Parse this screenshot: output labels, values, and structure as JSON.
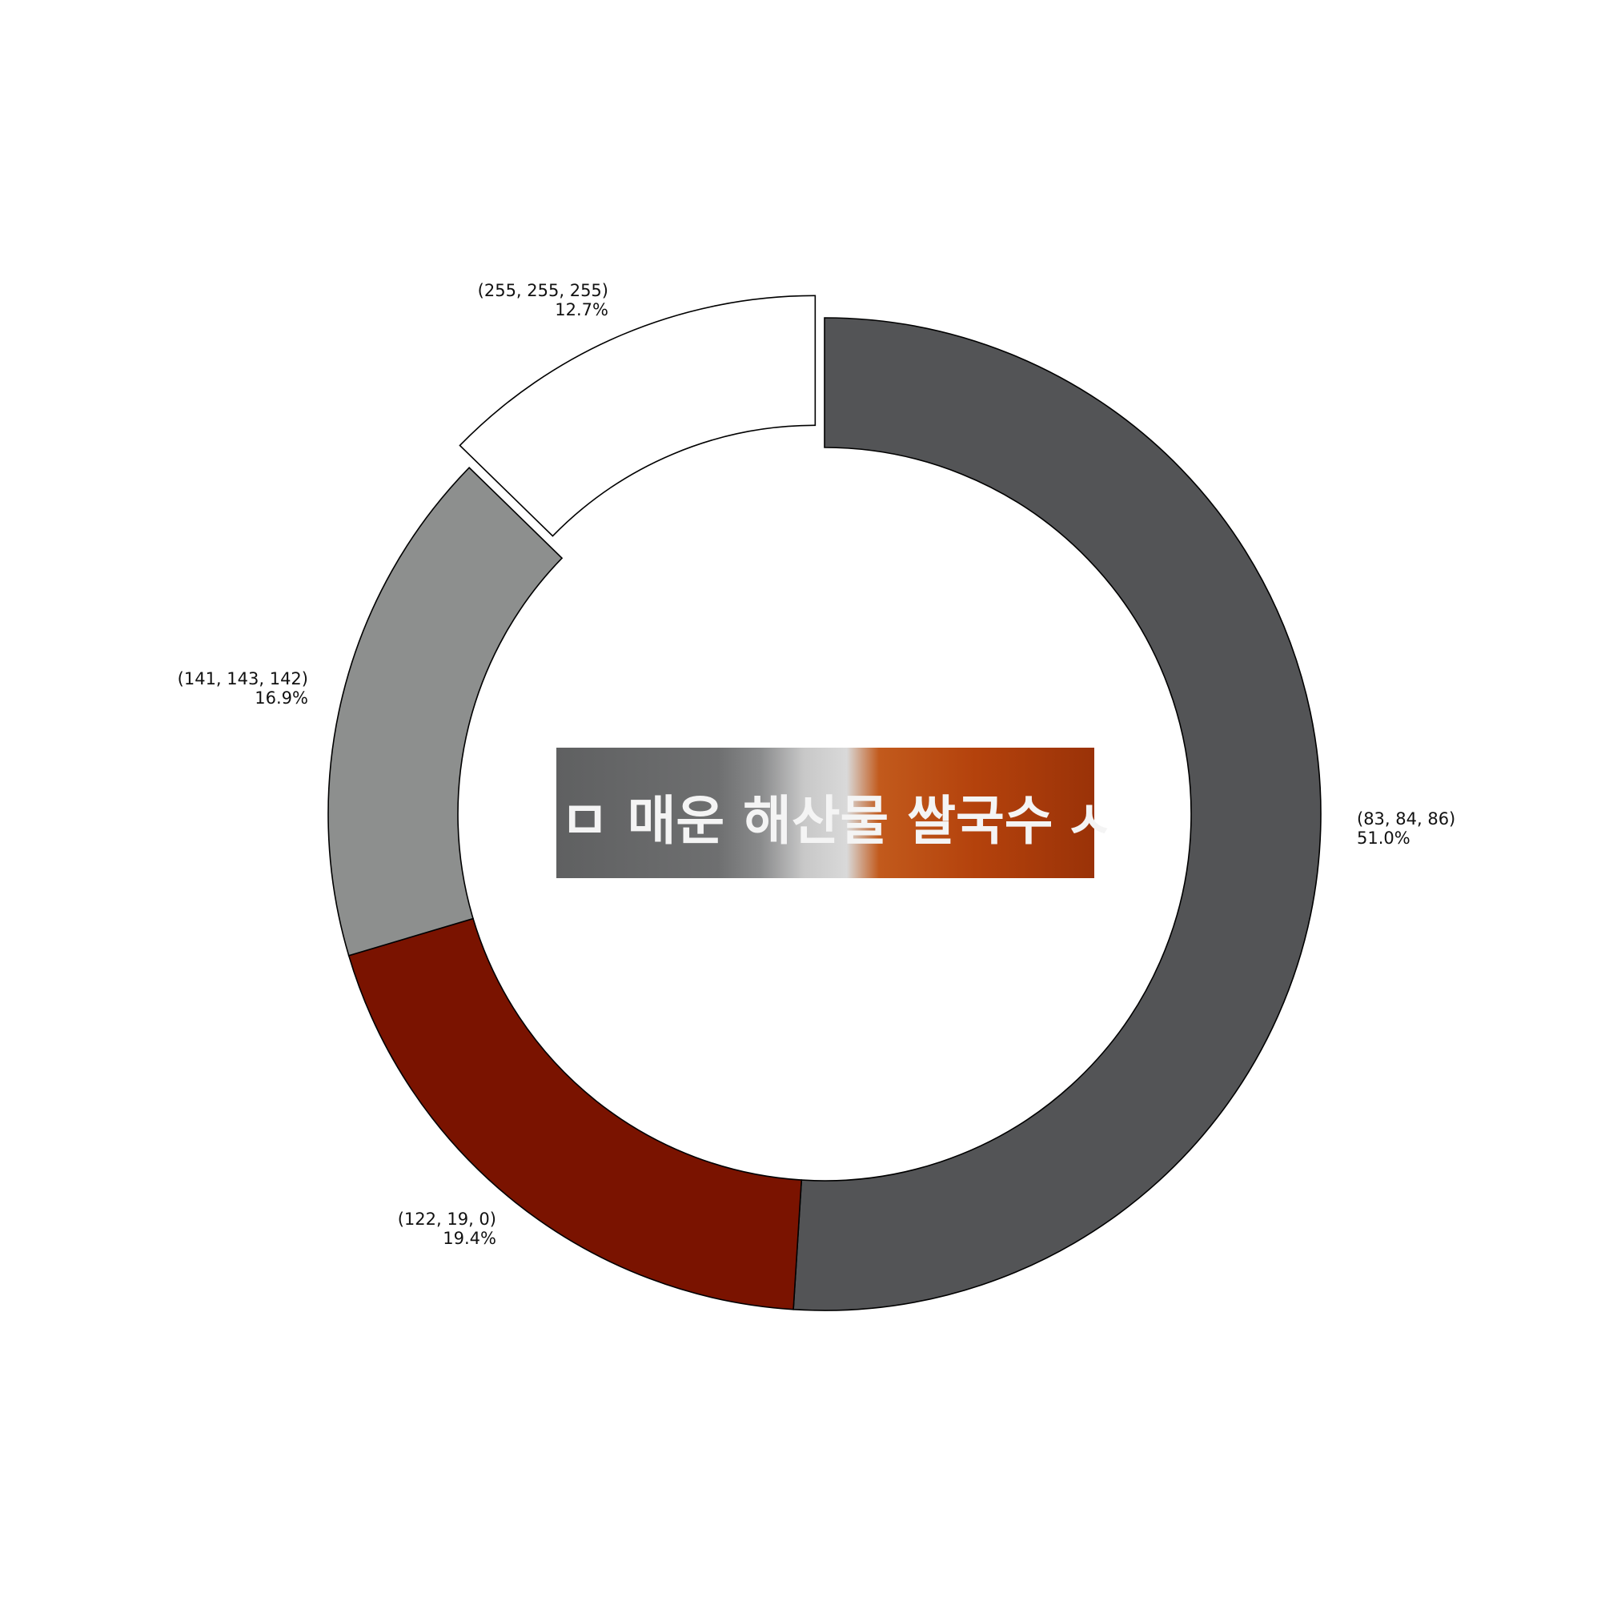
{
  "chart_data": {
    "type": "pie",
    "donut": true,
    "title": "",
    "slices": [
      {
        "label": "(83, 84, 86)",
        "value": 51.0,
        "percent_label": "51.0%",
        "color": "#535456",
        "exploded": false
      },
      {
        "label": "(122, 19, 0)",
        "value": 19.4,
        "percent_label": "19.4%",
        "color": "#7a1300",
        "exploded": false
      },
      {
        "label": "(141, 143, 142)",
        "value": 16.9,
        "percent_label": "16.9%",
        "color": "#8d8f8e",
        "exploded": false
      },
      {
        "label": "(255, 255, 255)",
        "value": 12.7,
        "percent_label": "12.7%",
        "color": "#ffffff",
        "exploded": true
      }
    ],
    "start_angle": "top, clockwise",
    "legend": "none"
  },
  "center_image": {
    "text": "ㅁ  매운 해산물 쌀국수",
    "trailing_glyph": "ㅅ",
    "colors": {
      "left": "#6b6c6d",
      "middle": "#9a9b9c",
      "right": "#b8430e"
    }
  }
}
